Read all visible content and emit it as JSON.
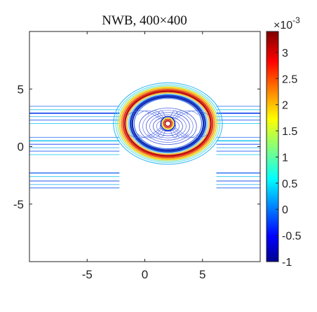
{
  "chart_data": {
    "type": "contour",
    "title": "NWB, 400×400",
    "xlabel": "",
    "ylabel": "",
    "xlim": [
      -10,
      10
    ],
    "ylim": [
      -10,
      10
    ],
    "x_ticks": [
      -5,
      0,
      5
    ],
    "y_ticks": [
      -5,
      0,
      5
    ],
    "x_tick_labels": [
      "-5",
      "0",
      "5"
    ],
    "y_tick_labels": [
      "-5",
      "0",
      "5"
    ],
    "grid": false,
    "colorbar": {
      "colormap": "jet",
      "range": [
        -1,
        3.4
      ],
      "multiplier": "×10",
      "multiplier_exponent": "-3",
      "ticks": [
        -1,
        -0.5,
        0,
        0.5,
        1,
        1.5,
        2,
        2.5,
        3
      ],
      "tick_labels": [
        "-1",
        "-0.5",
        "0",
        "0.5",
        "1",
        "1.5",
        "2",
        "2.5",
        "3"
      ]
    },
    "features": {
      "circle_center": [
        2,
        2
      ],
      "circle_radius_x": 4,
      "circle_radius_y": 3,
      "source_location": [
        2,
        2
      ],
      "horizontal_bands_y": [
        3.5,
        3.2,
        2.9,
        2.6,
        2.3,
        2.0,
        0.8,
        0.5,
        0.2,
        -0.1,
        -0.4,
        -0.7,
        -2.3,
        -2.6,
        -3.0,
        -3.3,
        -3.6
      ]
    }
  }
}
